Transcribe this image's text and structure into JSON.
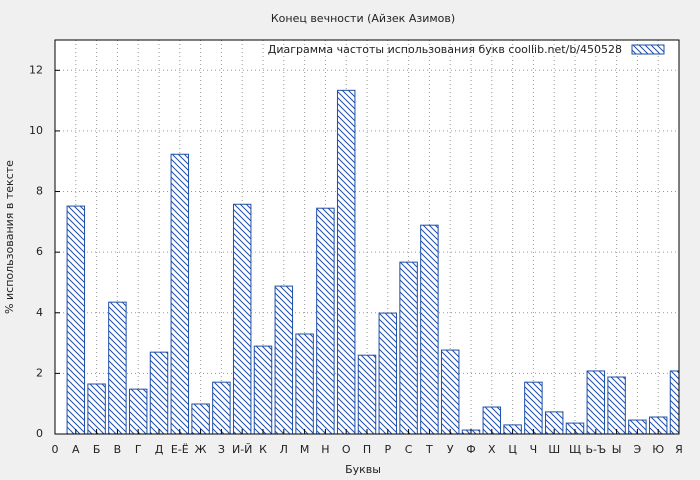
{
  "chart_data": {
    "type": "bar",
    "title": "Конец вечности (Айзек Азимов)",
    "xlabel": "Буквы",
    "ylabel": "% использования в тексте",
    "x": [
      1,
      2,
      3,
      4,
      5,
      6,
      7,
      8,
      9,
      10,
      11,
      12,
      13,
      14,
      15,
      16,
      17,
      18,
      19,
      20,
      21,
      22,
      23,
      24,
      25,
      26,
      27,
      28,
      29,
      30
    ],
    "series": [
      {
        "name": "Диаграмма частоты использования букв  coollib.net/b/450528",
        "color": "#1f4fa8",
        "values": [
          7.52,
          1.65,
          4.35,
          1.48,
          2.7,
          9.23,
          0.99,
          1.71,
          7.58,
          2.9,
          4.88,
          3.3,
          7.45,
          11.34,
          2.6,
          3.99,
          5.67,
          6.89,
          2.77,
          0.13,
          0.89,
          0.3,
          1.71,
          0.73,
          0.36,
          2.08,
          1.88,
          0.46,
          0.56,
          2.08
        ]
      }
    ],
    "xlim": [
      0,
      30
    ],
    "xticks": [
      0,
      {
        "value": 1,
        "label": "А"
      },
      {
        "value": 2,
        "label": "Б"
      },
      {
        "value": 3,
        "label": "В"
      },
      {
        "value": 4,
        "label": "Г"
      },
      {
        "value": 5,
        "label": "Д"
      },
      {
        "value": 6,
        "label": "Е-Ё"
      },
      {
        "value": 7,
        "label": "Ж"
      },
      {
        "value": 8,
        "label": "З"
      },
      {
        "value": 9,
        "label": "И-Й"
      },
      {
        "value": 10,
        "label": "К"
      },
      {
        "value": 11,
        "label": "Л"
      },
      {
        "value": 12,
        "label": "М"
      },
      {
        "value": 13,
        "label": "Н"
      },
      {
        "value": 14,
        "label": "О"
      },
      {
        "value": 15,
        "label": "П"
      },
      {
        "value": 16,
        "label": "Р"
      },
      {
        "value": 17,
        "label": "С"
      },
      {
        "value": 18,
        "label": "Т"
      },
      {
        "value": 19,
        "label": "У"
      },
      {
        "value": 20,
        "label": "Ф"
      },
      {
        "value": 21,
        "label": "Х"
      },
      {
        "value": 22,
        "label": "Ц"
      },
      {
        "value": 23,
        "label": "Ч"
      },
      {
        "value": 24,
        "label": "Ш"
      },
      {
        "value": 25,
        "label": "Щ"
      },
      {
        "value": 26,
        "label": "Ь-Ъ"
      },
      {
        "value": 27,
        "label": "Ы"
      },
      {
        "value": 28,
        "label": "Э"
      },
      {
        "value": 29,
        "label": "Ю"
      },
      {
        "value": 30,
        "label": "Я"
      }
    ],
    "ylim": [
      0,
      13
    ],
    "yticks": [
      0,
      2,
      4,
      6,
      8,
      10,
      12
    ],
    "grid": true,
    "legend": "top-right"
  }
}
